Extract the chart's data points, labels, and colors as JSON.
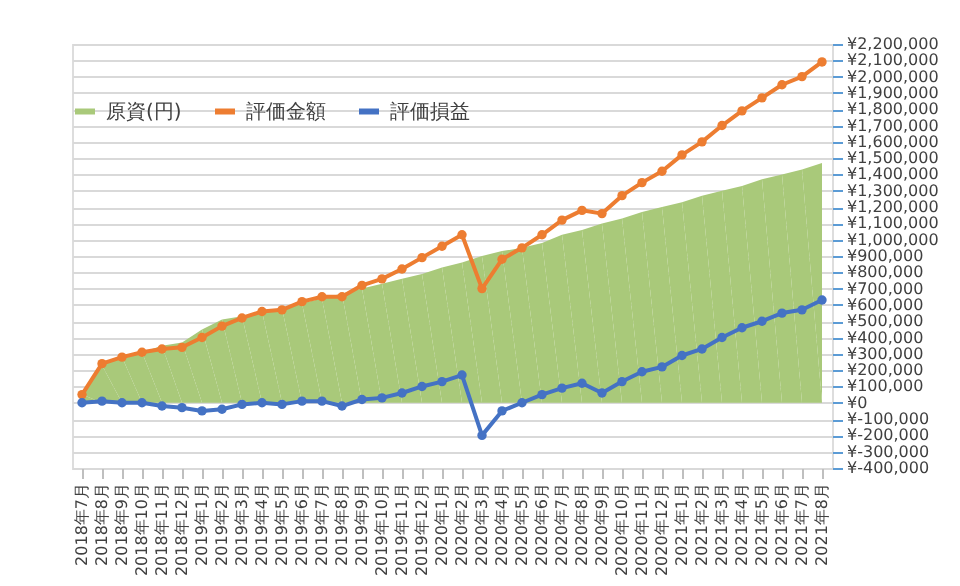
{
  "chart_data": {
    "type": "line",
    "categories": [
      "2018年7月",
      "2018年8月",
      "2018年9月",
      "2018年10月",
      "2018年11月",
      "2018年12月",
      "2019年1月",
      "2019年2月",
      "2019年3月",
      "2019年4月",
      "2019年5月",
      "2019年6月",
      "2019年7月",
      "2019年8月",
      "2019年9月",
      "2019年10月",
      "2019年11月",
      "2019年12月",
      "2020年1月",
      "2020年2月",
      "2020年3月",
      "2020年4月",
      "2020年5月",
      "2020年6月",
      "2020年7月",
      "2020年8月",
      "2020年9月",
      "2020年10月",
      "2020年11月",
      "2020年12月",
      "2021年1月",
      "2021年2月",
      "2021年3月",
      "2021年4月",
      "2021年5月",
      "2021年6月",
      "2021年7月",
      "2021年8月"
    ],
    "series": [
      {
        "name": "原資(円)",
        "type": "area",
        "color": "#a9c97a",
        "values": [
          50000,
          230000,
          280000,
          310000,
          350000,
          370000,
          450000,
          510000,
          530000,
          560000,
          580000,
          610000,
          640000,
          670000,
          700000,
          730000,
          760000,
          790000,
          830000,
          860000,
          900000,
          930000,
          950000,
          980000,
          1030000,
          1060000,
          1100000,
          1130000,
          1170000,
          1200000,
          1230000,
          1270000,
          1300000,
          1330000,
          1370000,
          1400000,
          1430000,
          1470000
        ]
      },
      {
        "name": "評価金額",
        "color": "#ed7d31",
        "marker": "circle",
        "values": [
          50000,
          240000,
          280000,
          310000,
          330000,
          340000,
          400000,
          470000,
          520000,
          560000,
          570000,
          620000,
          650000,
          650000,
          720000,
          760000,
          820000,
          890000,
          960000,
          1030000,
          700000,
          880000,
          950000,
          1030000,
          1120000,
          1180000,
          1160000,
          1270000,
          1350000,
          1420000,
          1520000,
          1600000,
          1700000,
          1790000,
          1870000,
          1950000,
          2000000,
          2090000
        ]
      },
      {
        "name": "評価損益",
        "color": "#4472c4",
        "marker": "circle",
        "values": [
          0,
          10000,
          0,
          0,
          -20000,
          -30000,
          -50000,
          -40000,
          -10000,
          0,
          -10000,
          10000,
          10000,
          -20000,
          20000,
          30000,
          60000,
          100000,
          130000,
          170000,
          -200000,
          -50000,
          0,
          50000,
          90000,
          120000,
          60000,
          130000,
          190000,
          220000,
          290000,
          330000,
          400000,
          460000,
          500000,
          550000,
          570000,
          630000
        ]
      }
    ],
    "ylim": [
      -400000,
      2200000
    ],
    "yticks": [
      {
        "value": -400000,
        "label": "¥-400,000"
      },
      {
        "value": -300000,
        "label": "¥-300,000"
      },
      {
        "value": -200000,
        "label": "¥-200,000"
      },
      {
        "value": -100000,
        "label": "¥-100,000"
      },
      {
        "value": 0,
        "label": "¥0"
      },
      {
        "value": 100000,
        "label": "¥100,000"
      },
      {
        "value": 200000,
        "label": "¥200,000"
      },
      {
        "value": 300000,
        "label": "¥300,000"
      },
      {
        "value": 400000,
        "label": "¥400,000"
      },
      {
        "value": 500000,
        "label": "¥500,000"
      },
      {
        "value": 600000,
        "label": "¥600,000"
      },
      {
        "value": 700000,
        "label": "¥700,000"
      },
      {
        "value": 800000,
        "label": "¥800,000"
      },
      {
        "value": 900000,
        "label": "¥900,000"
      },
      {
        "value": 1000000,
        "label": "¥1,000,000"
      },
      {
        "value": 1100000,
        "label": "¥1,100,000"
      },
      {
        "value": 1200000,
        "label": "¥1,200,000"
      },
      {
        "value": 1300000,
        "label": "¥1,300,000"
      },
      {
        "value": 1400000,
        "label": "¥1,400,000"
      },
      {
        "value": 1500000,
        "label": "¥1,500,000"
      },
      {
        "value": 1600000,
        "label": "¥1,600,000"
      },
      {
        "value": 1700000,
        "label": "¥1,700,000"
      },
      {
        "value": 1800000,
        "label": "¥1,800,000"
      },
      {
        "value": 1900000,
        "label": "¥1,900,000"
      },
      {
        "value": 2000000,
        "label": "¥2,000,000"
      },
      {
        "value": 2100000,
        "label": "¥2,100,000"
      },
      {
        "value": 2200000,
        "label": "¥2,200,000"
      }
    ],
    "grid": "y",
    "legend": "top"
  }
}
